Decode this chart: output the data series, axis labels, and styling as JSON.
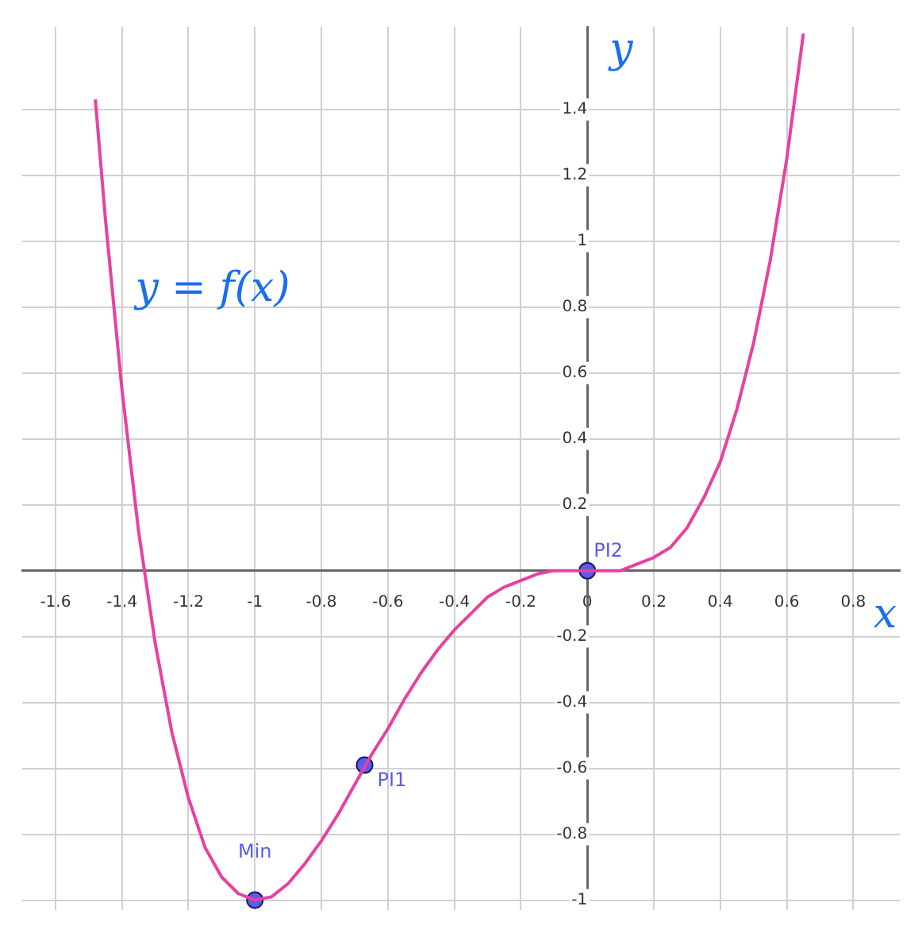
{
  "chart_data": {
    "type": "line",
    "xlabel": "x",
    "ylabel": "y",
    "xlim": [
      -1.7,
      0.94
    ],
    "ylim": [
      -1.03,
      1.65
    ],
    "xticks": [
      -1.6,
      -1.4,
      -1.2,
      -1,
      -0.8,
      -0.6,
      -0.4,
      -0.2,
      0,
      0.2,
      0.4,
      0.6,
      0.8
    ],
    "yticks": [
      -1,
      -0.8,
      -0.6,
      -0.4,
      -0.2,
      0.2,
      0.4,
      0.6,
      0.8,
      1,
      1.2,
      1.4
    ],
    "grid": true,
    "legend": false,
    "series": [
      {
        "color": "#e8419f",
        "marker": "none",
        "x": [
          -1.48,
          -1.45,
          -1.4,
          -1.35,
          -1.3,
          -1.25,
          -1.2,
          -1.15,
          -1.1,
          -1.05,
          -1,
          -0.95,
          -0.9,
          -0.85,
          -0.8,
          -0.75,
          -0.7,
          -0.65,
          -0.6,
          -0.55,
          -0.5,
          -0.45,
          -0.4,
          -0.35,
          -0.3,
          -0.25,
          -0.2,
          -0.15,
          -0.1,
          -0.05,
          0,
          0.05,
          0.1,
          0.15,
          0.2,
          0.25,
          0.3,
          0.35,
          0.4,
          0.45,
          0.5,
          0.55,
          0.6,
          0.65
        ],
        "values": [
          1.43,
          1.07,
          0.55,
          0.12,
          -0.22,
          -0.49,
          -0.69,
          -0.84,
          -0.93,
          -0.98,
          -1,
          -0.99,
          -0.95,
          -0.89,
          -0.82,
          -0.74,
          -0.65,
          -0.56,
          -0.48,
          -0.39,
          -0.31,
          -0.24,
          -0.18,
          -0.13,
          -0.08,
          -0.05,
          -0.03,
          -0.01,
          0,
          0,
          0,
          0,
          0,
          0.02,
          0.04,
          0.07,
          0.13,
          0.22,
          0.33,
          0.49,
          0.69,
          0.94,
          1.25,
          1.63
        ]
      },
      {
        "type": "scatter",
        "color": "#5b5bf0",
        "marker": "circle",
        "x": [
          -1,
          -0.67,
          0
        ],
        "values": [
          -1,
          -0.59,
          0
        ]
      }
    ],
    "annotations": [
      {
        "text": "Min",
        "x": -1,
        "y": -1
      },
      {
        "text": "PI1",
        "x": -0.67,
        "y": -0.59
      },
      {
        "text": "PI2",
        "x": 0,
        "y": 0
      },
      "y = f(x)"
    ]
  }
}
